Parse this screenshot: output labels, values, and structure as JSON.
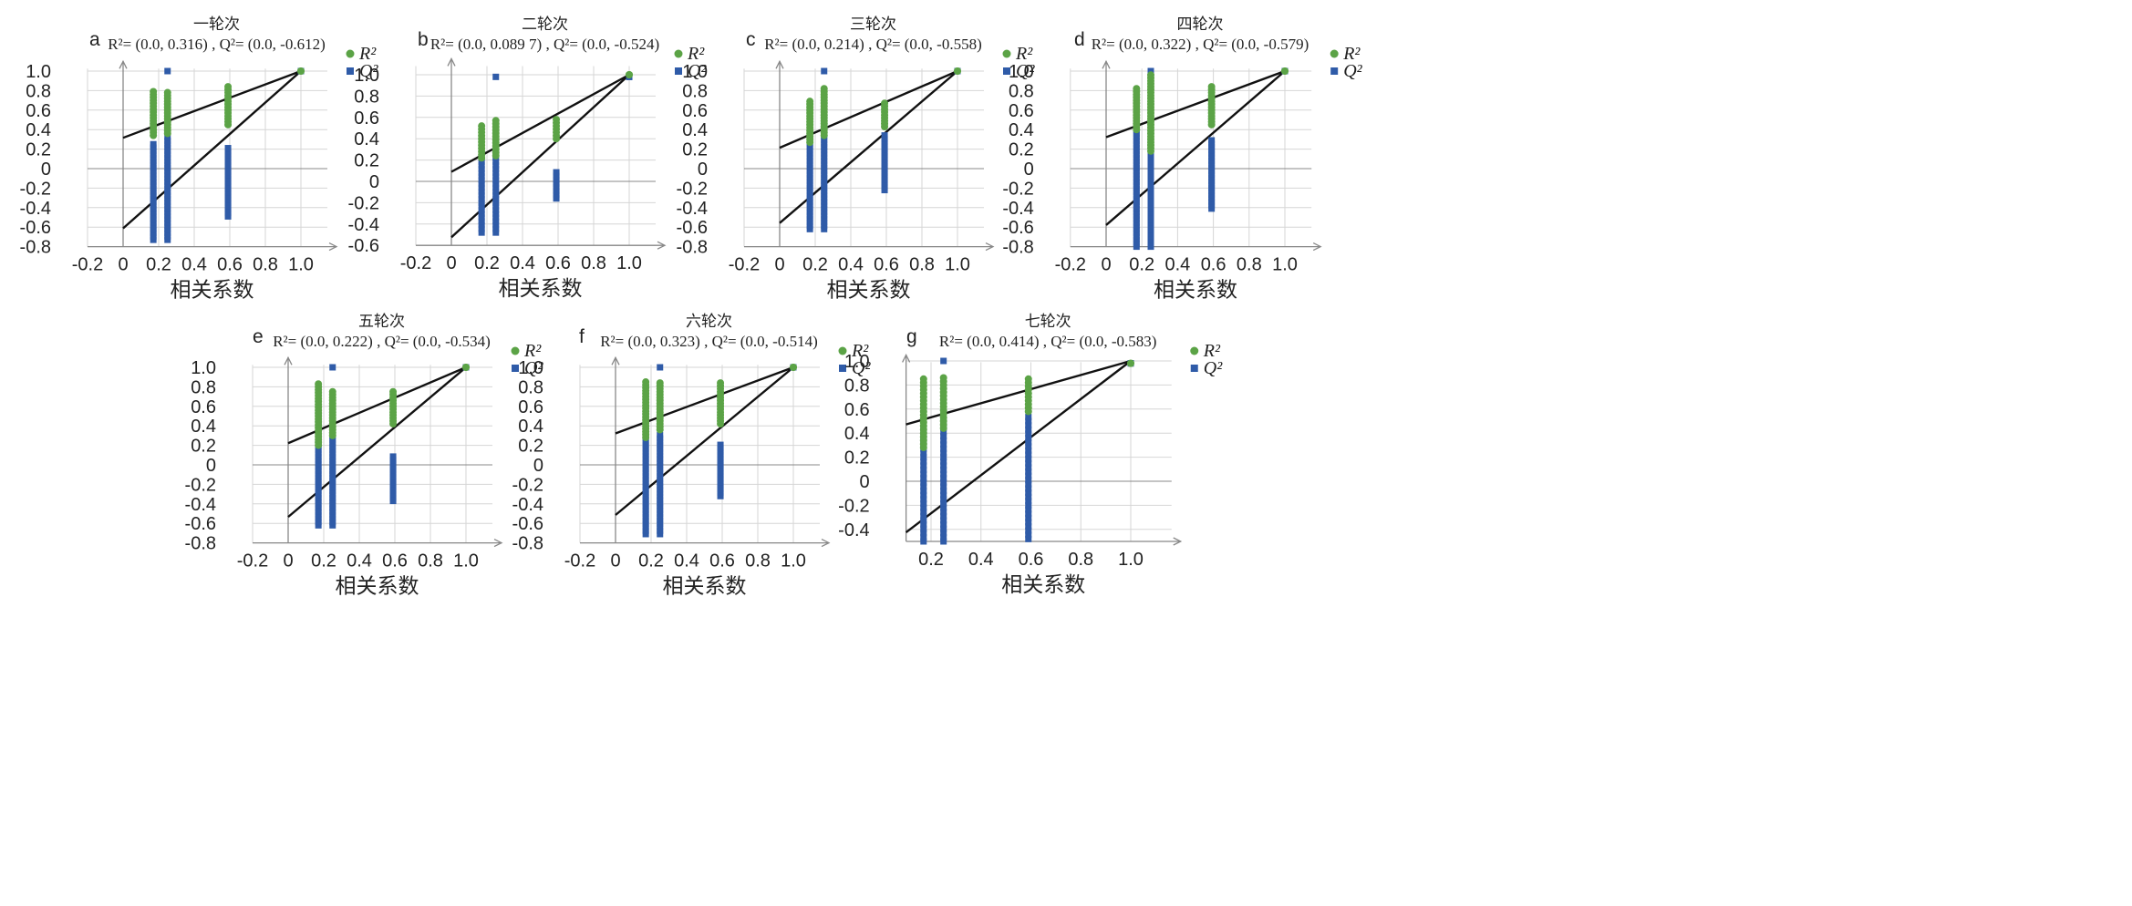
{
  "colors": {
    "r2": "#5ba346",
    "q2": "#2f5ba8",
    "line": "#111111",
    "grid": "#d6d6d6",
    "axis": "#888888"
  },
  "chart_data": [
    {
      "type": "scatter",
      "letter": "a",
      "title": "一轮次",
      "equation": "R²= (0.0, 0.316) , Q²= (0.0, -0.612)",
      "xlabel": "相关系数",
      "xlim": [
        -0.2,
        1.2
      ],
      "ylim": [
        -0.8,
        1.1
      ],
      "xticks": [
        "-0.2",
        "0",
        "0.2",
        "0.4",
        "0.6",
        "0.8",
        "1.0"
      ],
      "yticks": [
        "1.0",
        "0.8",
        "0.6",
        "0.4",
        "0.2",
        "0",
        "-0.2",
        "-0.4",
        "-0.6",
        "-0.8"
      ],
      "legend": [
        "R²",
        "Q²"
      ],
      "r2_intercept": 0.316,
      "q2_intercept": -0.612,
      "r2_points": [
        {
          "x": 0.17,
          "range": [
            0.34,
            0.81
          ]
        },
        {
          "x": 0.25,
          "range": [
            0.36,
            0.78
          ]
        },
        {
          "x": 0.59,
          "range": [
            0.45,
            0.86
          ]
        },
        {
          "x": 1.0,
          "range": [
            1.0,
            1.0
          ]
        }
      ],
      "q2_points": [
        {
          "x": 0.17,
          "range": [
            -0.73,
            0.27
          ]
        },
        {
          "x": 0.25,
          "range": [
            -0.73,
            0.35
          ],
          "outlier": 1.0
        },
        {
          "x": 0.59,
          "range": [
            -0.49,
            0.23
          ]
        },
        {
          "x": 1.0,
          "range": [
            1.0,
            1.0
          ]
        }
      ]
    },
    {
      "type": "scatter",
      "letter": "b",
      "title": "二轮次",
      "equation": "R²= (0.0, 0.089 7) , Q²= (0.0, -0.524)",
      "xlabel": "相关系数",
      "xlim": [
        -0.2,
        1.2
      ],
      "ylim": [
        -0.6,
        1.15
      ],
      "xticks": [
        "-0.2",
        "0",
        "0.2",
        "0.4",
        "0.6",
        "0.8",
        "1.0"
      ],
      "yticks": [
        "1.0",
        "0.8",
        "0.6",
        "0.4",
        "0.2",
        "0",
        "-0.2",
        "-0.4",
        "-0.6"
      ],
      "legend": [
        "R²",
        "Q²"
      ],
      "r2_intercept": 0.0897,
      "q2_intercept": -0.524,
      "r2_points": [
        {
          "x": 0.17,
          "range": [
            0.22,
            0.54
          ]
        },
        {
          "x": 0.25,
          "range": [
            0.24,
            0.57
          ]
        },
        {
          "x": 0.59,
          "range": [
            0.4,
            0.58
          ]
        },
        {
          "x": 1.0,
          "range": [
            1.0,
            1.0
          ]
        }
      ],
      "q2_points": [
        {
          "x": 0.17,
          "range": [
            -0.48,
            0.24
          ]
        },
        {
          "x": 0.25,
          "range": [
            -0.48,
            0.27
          ],
          "outlier": 0.98
        },
        {
          "x": 0.59,
          "range": [
            -0.16,
            0.1
          ]
        },
        {
          "x": 1.0,
          "range": [
            0.98,
            0.98
          ]
        }
      ]
    },
    {
      "type": "scatter",
      "letter": "c",
      "title": "三轮次",
      "equation": "R²= (0.0, 0.214) , Q²= (0.0, -0.558)",
      "xlabel": "相关系数",
      "xlim": [
        -0.2,
        1.2
      ],
      "ylim": [
        -0.8,
        1.1
      ],
      "xticks": [
        "-0.2",
        "0",
        "0.2",
        "0.4",
        "0.6",
        "0.8",
        "1.0"
      ],
      "yticks": [
        "1.0",
        "0.8",
        "0.6",
        "0.4",
        "0.2",
        "0",
        "-0.2",
        "-0.4",
        "-0.6",
        "-0.8"
      ],
      "legend": [
        "R²",
        "Q²"
      ],
      "r2_intercept": 0.214,
      "q2_intercept": -0.558,
      "r2_points": [
        {
          "x": 0.17,
          "range": [
            0.27,
            0.71
          ]
        },
        {
          "x": 0.25,
          "range": [
            0.34,
            0.84
          ]
        },
        {
          "x": 0.59,
          "range": [
            0.43,
            0.69
          ]
        },
        {
          "x": 1.0,
          "range": [
            1.0,
            1.0
          ]
        }
      ],
      "q2_points": [
        {
          "x": 0.17,
          "range": [
            -0.62,
            0.4
          ]
        },
        {
          "x": 0.25,
          "range": [
            -0.62,
            0.42
          ],
          "outlier": 1.0
        },
        {
          "x": 0.59,
          "range": [
            -0.22,
            0.37
          ]
        },
        {
          "x": 1.0,
          "range": [
            1.0,
            1.0
          ]
        }
      ]
    },
    {
      "type": "scatter",
      "letter": "d",
      "title": "四轮次",
      "equation": "R²= (0.0, 0.322) , Q²= (0.0, -0.579)",
      "xlabel": "相关系数",
      "xlim": [
        -0.2,
        1.2
      ],
      "ylim": [
        -0.8,
        1.1
      ],
      "xticks": [
        "-0.2",
        "0",
        "0.2",
        "0.4",
        "0.6",
        "0.8",
        "1.0"
      ],
      "yticks": [
        "1.0",
        "0.8",
        "0.6",
        "0.4",
        "0.2",
        "0",
        "-0.2",
        "-0.4",
        "-0.6",
        "-0.8"
      ],
      "legend": [
        "R²",
        "Q²"
      ],
      "r2_intercept": 0.322,
      "q2_intercept": -0.579,
      "r2_points": [
        {
          "x": 0.17,
          "range": [
            0.4,
            0.83
          ]
        },
        {
          "x": 0.25,
          "range": [
            0.18,
            0.97
          ]
        },
        {
          "x": 0.59,
          "range": [
            0.45,
            0.85
          ]
        },
        {
          "x": 1.0,
          "range": [
            1.0,
            1.0
          ]
        }
      ],
      "q2_points": [
        {
          "x": 0.17,
          "range": [
            -0.8,
            0.46
          ]
        },
        {
          "x": 0.25,
          "range": [
            -0.8,
            0.63
          ],
          "outlier": 1.0
        },
        {
          "x": 0.59,
          "range": [
            -0.41,
            0.32
          ]
        },
        {
          "x": 1.0,
          "range": [
            1.0,
            1.0
          ]
        }
      ]
    },
    {
      "type": "scatter",
      "letter": "e",
      "title": "五轮次",
      "equation": "R²= (0.0, 0.222) , Q²= (0.0, -0.534)",
      "xlabel": "相关系数",
      "xlim": [
        -0.2,
        1.2
      ],
      "ylim": [
        -0.8,
        1.1
      ],
      "xticks": [
        "-0.2",
        "0",
        "0.2",
        "0.4",
        "0.6",
        "0.8",
        "1.0"
      ],
      "yticks": [
        "1.0",
        "0.8",
        "0.6",
        "0.4",
        "0.2",
        "0",
        "-0.2",
        "-0.4",
        "-0.6",
        "-0.8"
      ],
      "legend": [
        "R²",
        "Q²"
      ],
      "r2_intercept": 0.222,
      "q2_intercept": -0.534,
      "r2_points": [
        {
          "x": 0.17,
          "range": [
            0.2,
            0.83
          ]
        },
        {
          "x": 0.25,
          "range": [
            0.3,
            0.77
          ]
        },
        {
          "x": 0.59,
          "range": [
            0.42,
            0.76
          ]
        },
        {
          "x": 1.0,
          "range": [
            1.0,
            1.0
          ]
        }
      ],
      "q2_points": [
        {
          "x": 0.17,
          "range": [
            -0.62,
            0.55
          ]
        },
        {
          "x": 0.25,
          "range": [
            -0.62,
            0.31
          ],
          "outlier": 1.0
        },
        {
          "x": 0.59,
          "range": [
            -0.37,
            0.1
          ]
        },
        {
          "x": 1.0,
          "range": [
            1.0,
            1.0
          ]
        }
      ]
    },
    {
      "type": "scatter",
      "letter": "f",
      "title": "六轮次",
      "equation": "R²= (0.0, 0.323) , Q²= (0.0, -0.514)",
      "xlabel": "相关系数",
      "xlim": [
        -0.2,
        1.2
      ],
      "ylim": [
        -0.8,
        1.1
      ],
      "xticks": [
        "-0.2",
        "0",
        "0.2",
        "0.4",
        "0.6",
        "0.8",
        "1.0"
      ],
      "yticks": [
        "1.0",
        "0.8",
        "0.6",
        "0.4",
        "0.2",
        "0",
        "-0.2",
        "-0.4",
        "-0.6",
        "-0.8"
      ],
      "legend": [
        "R²",
        "Q²"
      ],
      "r2_intercept": 0.323,
      "q2_intercept": -0.514,
      "r2_points": [
        {
          "x": 0.17,
          "range": [
            0.28,
            0.85
          ]
        },
        {
          "x": 0.25,
          "range": [
            0.36,
            0.86
          ]
        },
        {
          "x": 0.59,
          "range": [
            0.42,
            0.86
          ]
        },
        {
          "x": 1.0,
          "range": [
            1.0,
            1.0
          ]
        }
      ],
      "q2_points": [
        {
          "x": 0.17,
          "range": [
            -0.71,
            0.27
          ]
        },
        {
          "x": 0.25,
          "range": [
            -0.71,
            0.33
          ],
          "outlier": 1.0
        },
        {
          "x": 0.59,
          "range": [
            -0.32,
            0.23
          ]
        },
        {
          "x": 1.0,
          "range": [
            1.0,
            1.0
          ]
        }
      ]
    },
    {
      "type": "scatter",
      "letter": "g",
      "title": "七轮次",
      "equation": "R²= (0.0, 0.414) , Q²= (0.0, -0.583)",
      "xlabel": "相关系数",
      "xlim": [
        0.1,
        1.2
      ],
      "ylim": [
        -0.5,
        1.05
      ],
      "xticks": [
        "0.2",
        "0.4",
        "0.6",
        "0.8",
        "1.0"
      ],
      "yticks": [
        "1.0",
        "0.8",
        "0.6",
        "0.4",
        "0.2",
        "0",
        "-0.2",
        "-0.4"
      ],
      "legend": [
        "R²",
        "Q²"
      ],
      "r2_intercept": 0.414,
      "q2_intercept": -0.583,
      "r2_points": [
        {
          "x": 0.17,
          "range": [
            0.28,
            0.86
          ]
        },
        {
          "x": 0.25,
          "range": [
            0.44,
            0.86
          ]
        },
        {
          "x": 0.59,
          "range": [
            0.58,
            0.86
          ]
        },
        {
          "x": 1.0,
          "range": [
            0.98,
            0.98
          ]
        }
      ],
      "q2_points": [
        {
          "x": 0.17,
          "range": [
            -0.5,
            0.46
          ]
        },
        {
          "x": 0.25,
          "range": [
            -0.5,
            0.53
          ],
          "outlier": 1.0
        },
        {
          "x": 0.59,
          "range": [
            -0.48,
            0.55
          ]
        },
        {
          "x": 1.0,
          "range": [
            0.98,
            0.98
          ]
        }
      ]
    }
  ]
}
